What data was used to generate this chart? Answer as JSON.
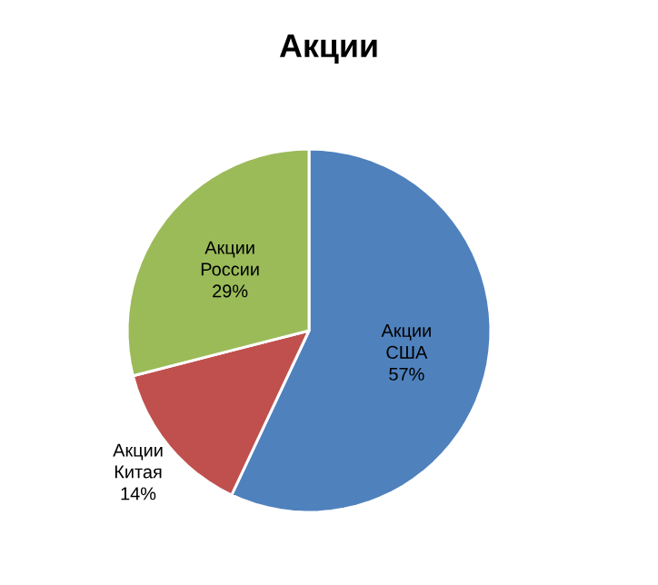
{
  "chart_data": {
    "type": "pie",
    "title": "Акции",
    "categories": [
      "Акции США",
      "Акции Китая",
      "Акции России"
    ],
    "values": [
      57,
      14,
      29
    ],
    "value_labels": [
      "57%",
      "14%",
      "29%"
    ],
    "colors": [
      "#4f81bd",
      "#c0504d",
      "#9bbb59"
    ]
  }
}
